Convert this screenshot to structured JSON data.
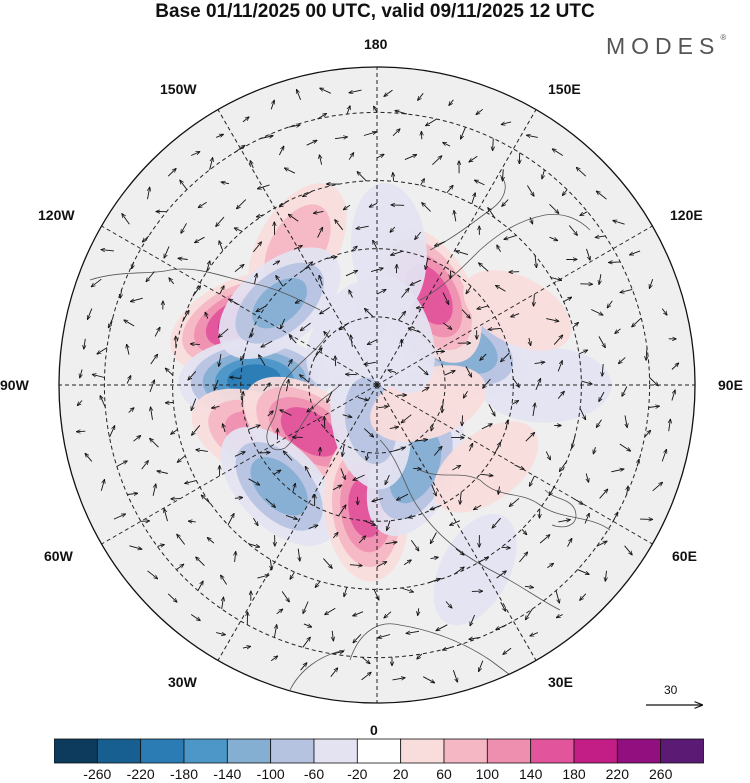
{
  "title": "Base 01/11/2025 00 UTC, valid 09/11/2025 12 UTC",
  "brand": "MODES",
  "brand_mark": "®",
  "longitude_labels": {
    "lon_0": "0",
    "lon_30e": "30E",
    "lon_60e": "60E",
    "lon_90e": "90E",
    "lon_120e": "120E",
    "lon_150e": "150E",
    "lon_180": "180",
    "lon_150w": "150W",
    "lon_120w": "120W",
    "lon_90w": "90W",
    "lon_60w": "60W",
    "lon_30w": "30W"
  },
  "reference_vector": {
    "label": "30",
    "value": 30
  },
  "colorbar": {
    "tick_labels": [
      "-260",
      "-220",
      "-180",
      "-140",
      "-100",
      "-60",
      "-20",
      "20",
      "60",
      "100",
      "140",
      "180",
      "220",
      "260"
    ],
    "colors": [
      "#0d3b5e",
      "#175f91",
      "#2b7bb5",
      "#4d97c8",
      "#85aed3",
      "#b6c3e0",
      "#e3e3f1",
      "#ffffff",
      "#f9dcdc",
      "#f6b7c4",
      "#ef8fb0",
      "#e2559c",
      "#c21e86",
      "#920f80",
      "#5b1a73"
    ]
  },
  "anomalies": [
    {
      "lat": 57,
      "lon": -115,
      "value": 190
    },
    {
      "lat": 63,
      "lon": -92,
      "value": -200
    },
    {
      "lat": 62,
      "lon": -66,
      "value": 130
    },
    {
      "lat": 72,
      "lon": -55,
      "value": 170
    },
    {
      "lat": 59,
      "lon": -44,
      "value": -120
    },
    {
      "lat": 63,
      "lon": -5,
      "value": 160
    },
    {
      "lat": 70,
      "lon": 25,
      "value": -130
    },
    {
      "lat": 82,
      "lon": -10,
      "value": -80
    },
    {
      "lat": 60,
      "lon": 53,
      "value": 35
    },
    {
      "lat": 53,
      "lon": 90,
      "value": -60
    },
    {
      "lat": 70,
      "lon": 115,
      "value": -140
    },
    {
      "lat": 67,
      "lon": 150,
      "value": 170
    },
    {
      "lat": 60,
      "lon": 175,
      "value": -60
    },
    {
      "lat": 55,
      "lon": -150,
      "value": 90
    },
    {
      "lat": 62,
      "lon": -130,
      "value": -110
    },
    {
      "lat": 78,
      "lon": 70,
      "value": 35
    },
    {
      "lat": 78,
      "lon": 160,
      "value": -40
    },
    {
      "lat": 44,
      "lon": 28,
      "value": -35
    },
    {
      "lat": 55,
      "lon": 118,
      "value": 30
    },
    {
      "lat": 77,
      "lon": -150,
      "value": -30
    }
  ]
}
